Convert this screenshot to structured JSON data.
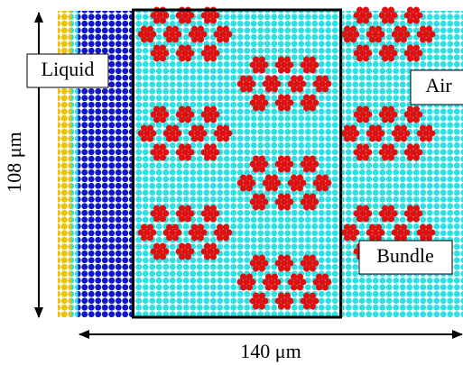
{
  "labels": {
    "liquid": "Liquid",
    "air": "Air",
    "bundle": "Bundle",
    "height": "108 μm",
    "width": "140 μm"
  }
}
